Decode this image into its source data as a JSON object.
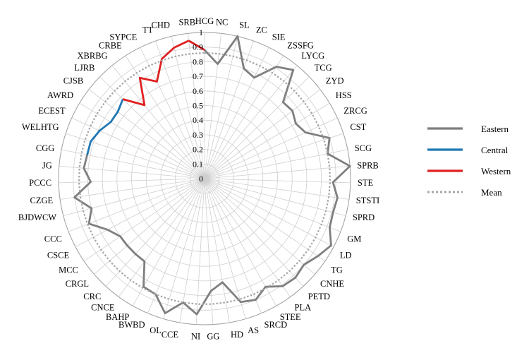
{
  "chart_data": {
    "type": "radar",
    "categories": [
      "HCG",
      "NC",
      "SL",
      "ZC",
      "SIE",
      "ZSSFG",
      "LYCG",
      "TCG",
      "ZYD",
      "HSS",
      "ZRCG",
      "CST",
      "SCG",
      "SPRB",
      "STE",
      "STSTI",
      "SPRD",
      "GM",
      "LD",
      "TG",
      "CNHE",
      "PETD",
      "PLA",
      "STEE",
      "SRCD",
      "AS",
      "HD",
      "GG",
      "NI",
      "CCE",
      "OL",
      "BWBD",
      "BAHP",
      "CNCE",
      "CRC",
      "CRGL",
      "MCC",
      "CSCE",
      "CCC",
      "BJDWCW",
      "CZGE",
      "PCCC",
      "JG",
      "CGG",
      "WELHTG",
      "ECEST",
      "AWRD",
      "CJSB",
      "LJRB",
      "XBRBG",
      "CRBE",
      "SYPCE",
      "TT",
      "CHD",
      "SRB"
    ],
    "rlim": [
      0,
      1
    ],
    "ticks": [
      "0",
      "0.1",
      "0.2",
      "0.3",
      "0.4",
      "0.5",
      "0.6",
      "0.7",
      "0.8",
      "0.9",
      "1"
    ],
    "grid": true,
    "legend_position": "right",
    "series": [
      {
        "name": "Eastern",
        "color": "#7f7f7f",
        "style": "solid",
        "values": [
          0.88,
          0.79,
          1.0,
          0.8,
          0.77,
          0.91,
          0.96,
          0.75,
          0.76,
          0.73,
          0.76,
          0.9,
          0.86,
          1.0,
          0.88,
          0.92,
          0.91,
          0.92,
          0.98,
          0.94,
          0.9,
          0.92,
          0.91,
          0.85,
          0.9,
          0.88,
          0.72,
          0.77,
          0.93,
          0.86,
          0.96,
          0.86,
          0.85,
          0.7,
          0.7,
          0.7,
          0.7,
          0.75,
          0.85,
          0.8,
          0.9,
          0.78,
          0.83,
          0.82,
          null,
          null,
          null,
          null,
          null,
          null,
          null,
          null,
          null,
          null,
          null
        ]
      },
      {
        "name": "Central",
        "color": "#1f77b4",
        "style": "solid",
        "values": [
          null,
          null,
          null,
          null,
          null,
          null,
          null,
          null,
          null,
          null,
          null,
          null,
          null,
          null,
          null,
          null,
          null,
          null,
          null,
          null,
          null,
          null,
          null,
          null,
          null,
          null,
          null,
          null,
          null,
          null,
          null,
          null,
          null,
          null,
          null,
          null,
          null,
          null,
          null,
          null,
          null,
          null,
          null,
          0.82,
          0.82,
          0.79,
          0.75,
          0.75,
          0.78,
          null,
          null,
          null,
          null,
          null,
          null
        ]
      },
      {
        "name": "Western",
        "color": "#e02020",
        "style": "solid",
        "values": [
          null,
          null,
          null,
          null,
          null,
          null,
          null,
          null,
          null,
          null,
          null,
          null,
          null,
          null,
          null,
          null,
          null,
          null,
          null,
          null,
          null,
          null,
          null,
          null,
          null,
          null,
          null,
          null,
          null,
          null,
          null,
          null,
          null,
          null,
          null,
          null,
          null,
          null,
          null,
          null,
          null,
          null,
          null,
          null,
          null,
          null,
          null,
          null,
          0.78,
          0.65,
          0.82,
          0.74,
          0.87,
          0.92,
          0.95
        ]
      },
      {
        "name": "Mean",
        "color": "#a6a6a6",
        "style": "dotted",
        "values": [
          0.86,
          0.86,
          0.86,
          0.86,
          0.86,
          0.86,
          0.86,
          0.86,
          0.86,
          0.86,
          0.86,
          0.86,
          0.86,
          0.86,
          0.86,
          0.86,
          0.86,
          0.86,
          0.86,
          0.86,
          0.86,
          0.86,
          0.86,
          0.86,
          0.86,
          0.86,
          0.86,
          0.86,
          0.86,
          0.86,
          0.86,
          0.86,
          0.86,
          0.86,
          0.86,
          0.86,
          0.86,
          0.86,
          0.86,
          0.86,
          0.86,
          0.86,
          0.86,
          0.86,
          0.86,
          0.86,
          0.86,
          0.86,
          0.86,
          0.86,
          0.86,
          0.86,
          0.86,
          0.86,
          0.86
        ]
      }
    ]
  }
}
